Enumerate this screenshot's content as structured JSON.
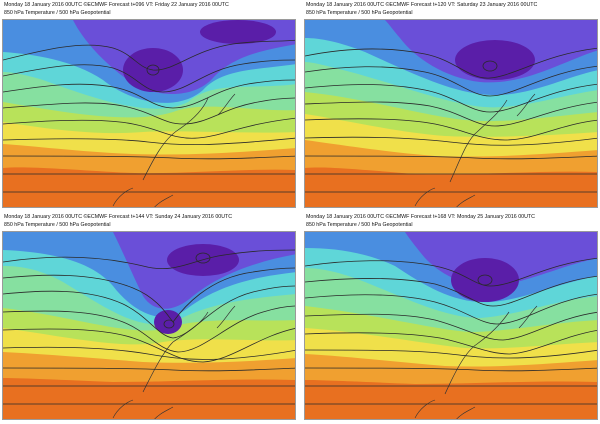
{
  "panels": [
    {
      "title": "Monday 18 January 2016 00UTC ©ECMWF Forecast t+096 VT: Friday 22 January 2016 00UTC",
      "subtitle": "850 hPa Temperature / 500 hPa Geopotential"
    },
    {
      "title": "Monday 18 January 2016 00UTC ©ECMWF Forecast t+120 VT: Saturday 23 January 2016 00UTC",
      "subtitle": "850 hPa Temperature / 500 hPa Geopotential"
    },
    {
      "title": "Monday 18 January 2016 00UTC ©ECMWF Forecast t+144 VT: Sunday 24 January 2016 00UTC",
      "subtitle": "850 hPa Temperature / 500 hPa Geopotential"
    },
    {
      "title": "Monday 18 January 2016 00UTC ©ECMWF Forecast t+168 VT: Monday 25 January 2016 00UTC",
      "subtitle": "850 hPa Temperature / 500 hPa Geopotential"
    }
  ],
  "colors": {
    "deep_cold": "#5a1ea8",
    "cold": "#6a4fd8",
    "cool": "#4a8ee0",
    "cyan": "#5fd6d8",
    "mild": "#86e0a0",
    "warm_green": "#b8e25a",
    "yellow": "#f0e04a",
    "orange": "#f0a030",
    "hot": "#e87020",
    "contour": "#2a2a2a"
  }
}
